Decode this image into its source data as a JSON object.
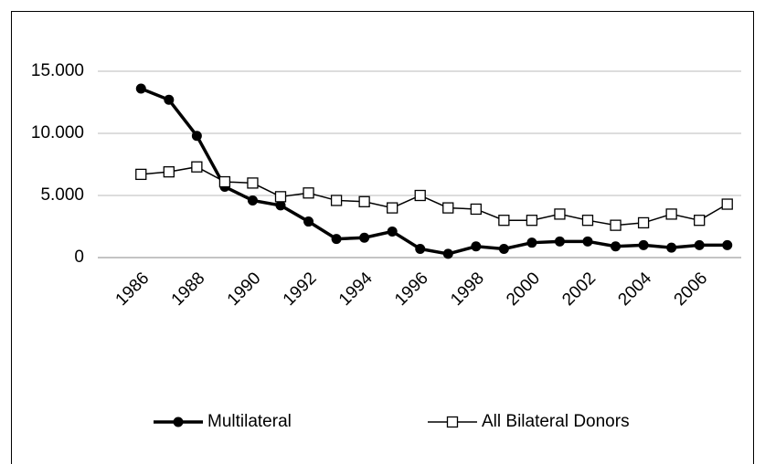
{
  "chart_data": {
    "type": "line",
    "categories": [
      "1986",
      null,
      "1988",
      null,
      "1990",
      null,
      "1992",
      null,
      "1994",
      null,
      "1996",
      null,
      "1998",
      null,
      "2000",
      null,
      "2002",
      null,
      "2004",
      null,
      "2006",
      null
    ],
    "series": [
      {
        "name": "Multilateral",
        "color": "#000000",
        "marker": "filled-circle",
        "values": [
          13600,
          12700,
          9800,
          5700,
          4600,
          4200,
          2900,
          1500,
          1600,
          2100,
          700,
          300,
          900,
          700,
          1200,
          1300,
          1300,
          900,
          1000,
          800,
          1000,
          1000
        ]
      },
      {
        "name": "All Bilateral Donors",
        "color": "#000000",
        "marker": "open-square",
        "values": [
          6700,
          6900,
          7300,
          6100,
          6000,
          4900,
          5200,
          4600,
          4500,
          4000,
          5000,
          4000,
          3900,
          3000,
          3000,
          3500,
          3000,
          2600,
          2800,
          3500,
          3000,
          4300
        ]
      }
    ],
    "ylim": [
      0,
      15000
    ],
    "yticks": [
      0,
      {
        "value": 5000,
        "label": "5.000"
      },
      {
        "value": 10000,
        "label": "10.000"
      },
      {
        "value": 15000,
        "label": "15.000"
      }
    ],
    "grid": true,
    "legend": "bottom"
  }
}
